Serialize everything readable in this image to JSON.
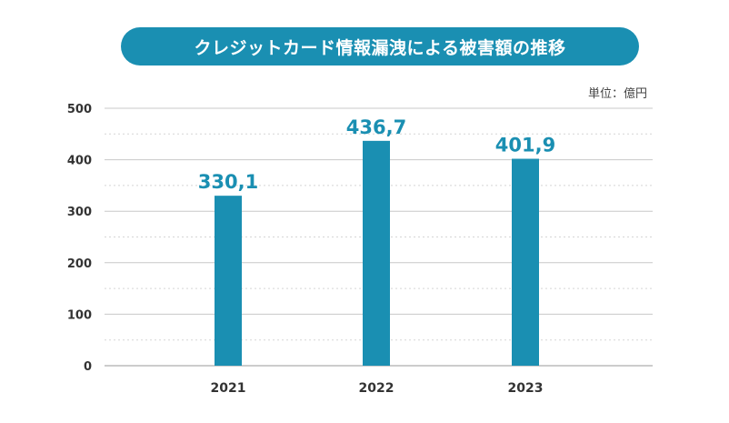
{
  "colors": {
    "accent": "#1a8fb2",
    "grid": "#c8c8c8",
    "axis_text": "#333333",
    "bar": "#1a8fb2"
  },
  "chart_data": {
    "type": "bar",
    "title": "クレジットカード情報漏洩による被害額の推移",
    "unit_label": "単位：億円",
    "categories": [
      "2021",
      "2022",
      "2023"
    ],
    "values": [
      330.1,
      436.7,
      401.9
    ],
    "value_labels": [
      "330,1",
      "436,7",
      "401,9"
    ],
    "yticks": [
      "0",
      "100",
      "200",
      "300",
      "400",
      "500"
    ],
    "ylim": [
      0,
      500
    ],
    "grid": true
  }
}
